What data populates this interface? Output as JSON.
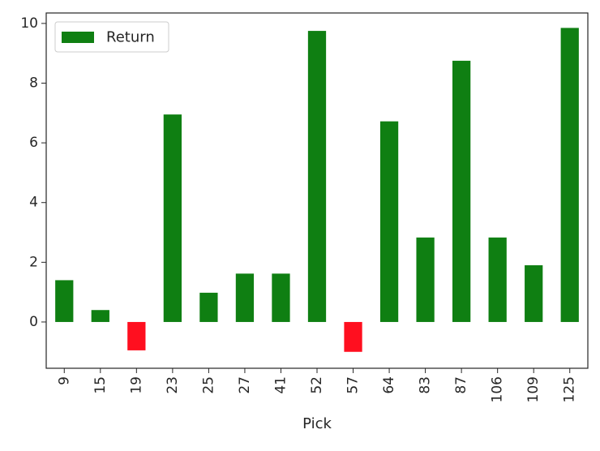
{
  "chart_data": {
    "type": "bar",
    "categories": [
      "9",
      "15",
      "19",
      "23",
      "25",
      "27",
      "41",
      "52",
      "57",
      "64",
      "83",
      "87",
      "106",
      "109",
      "125"
    ],
    "series": [
      {
        "name": "Return",
        "values": [
          1.4,
          0.4,
          -0.95,
          6.95,
          0.98,
          1.62,
          1.62,
          9.75,
          -1.0,
          6.72,
          2.83,
          8.75,
          2.83,
          1.9,
          9.85
        ]
      }
    ],
    "xlabel": "Pick",
    "ylabel": "",
    "ylim": [
      -1.55,
      10.35
    ],
    "yticks": [
      0,
      2,
      4,
      6,
      8,
      10
    ],
    "legend": {
      "position": "top-left",
      "entries": [
        "Return"
      ]
    },
    "grid": false,
    "colors": {
      "positive": "#0f7f12",
      "negative": "#ff0f1f",
      "axis": "#262626"
    }
  }
}
